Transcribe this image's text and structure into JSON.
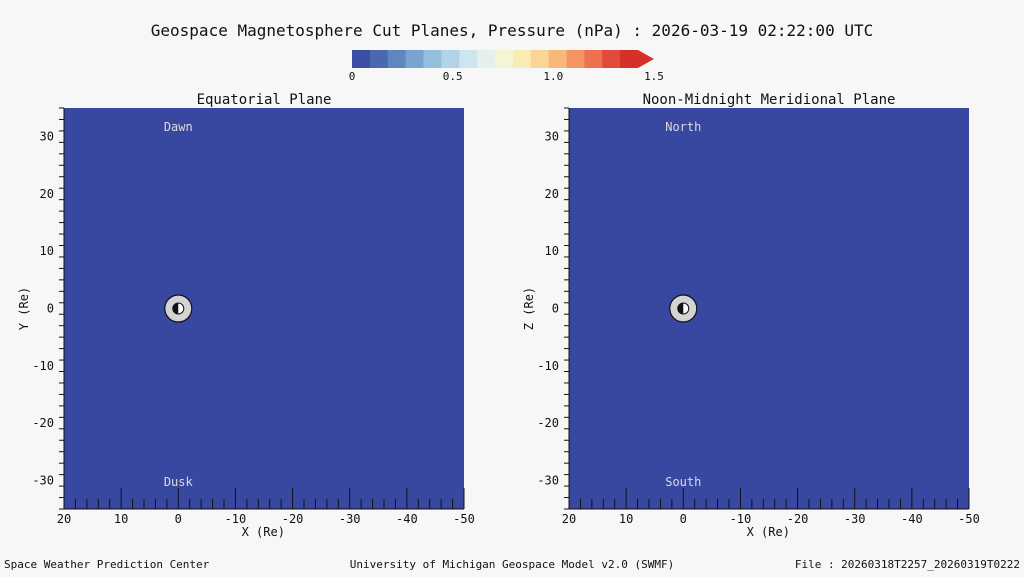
{
  "title": "Geospace Magnetosphere Cut Planes, Pressure (nPa) : 2026-03-19 02:22:00 UTC",
  "colorbar": {
    "ticks": [
      "0",
      "0.5",
      "1.0",
      "1.5"
    ],
    "range": [
      0,
      1.5
    ],
    "colors": [
      "#3a4ea3",
      "#4a68ad",
      "#5f86bf",
      "#78a4d0",
      "#93bedc",
      "#b1d3e6",
      "#cde5ee",
      "#e5f0ea",
      "#f4f6d3",
      "#f9edb3",
      "#fad595",
      "#f8b878",
      "#f59563",
      "#ee7050",
      "#e24a3b",
      "#d7302a"
    ]
  },
  "field_color": "#3847a0",
  "chart_data": [
    {
      "type": "heatmap",
      "title": "Equatorial Plane",
      "xlabel": "X (Re)",
      "ylabel": "Y (Re)",
      "xlim": [
        20,
        -50
      ],
      "ylim": [
        -35,
        35
      ],
      "xticks": [
        20,
        10,
        0,
        -10,
        -20,
        -30,
        -40,
        -50
      ],
      "yticks": [
        30,
        20,
        10,
        0,
        -10,
        -20,
        -30
      ],
      "xtick_labels": [
        "20",
        "10",
        "0",
        "-10",
        "-20",
        "-30",
        "-40",
        "-50"
      ],
      "ytick_labels": [
        "30",
        "20",
        "10",
        "0",
        "-10",
        "-20",
        "-30"
      ],
      "top_label": "Dawn",
      "bottom_label": "Dusk",
      "field_value_nPa": 0,
      "earth_center": [
        0,
        0
      ]
    },
    {
      "type": "heatmap",
      "title": "Noon-Midnight Meridional Plane",
      "xlabel": "X (Re)",
      "ylabel": "Z (Re)",
      "xlim": [
        20,
        -50
      ],
      "ylim": [
        -35,
        35
      ],
      "xticks": [
        20,
        10,
        0,
        -10,
        -20,
        -30,
        -40,
        -50
      ],
      "yticks": [
        30,
        20,
        10,
        0,
        -10,
        -20,
        -30
      ],
      "xtick_labels": [
        "20",
        "10",
        "0",
        "-10",
        "-20",
        "-30",
        "-40",
        "-50"
      ],
      "ytick_labels": [
        "30",
        "20",
        "10",
        "0",
        "-10",
        "-20",
        "-30"
      ],
      "top_label": "North",
      "bottom_label": "South",
      "field_value_nPa": 0,
      "earth_center": [
        0,
        0
      ]
    }
  ],
  "footer": {
    "left": "Space Weather Prediction Center",
    "center": "University of Michigan Geospace Model v2.0 (SWMF)",
    "right": "File : 20260318T2257_20260319T0222"
  }
}
